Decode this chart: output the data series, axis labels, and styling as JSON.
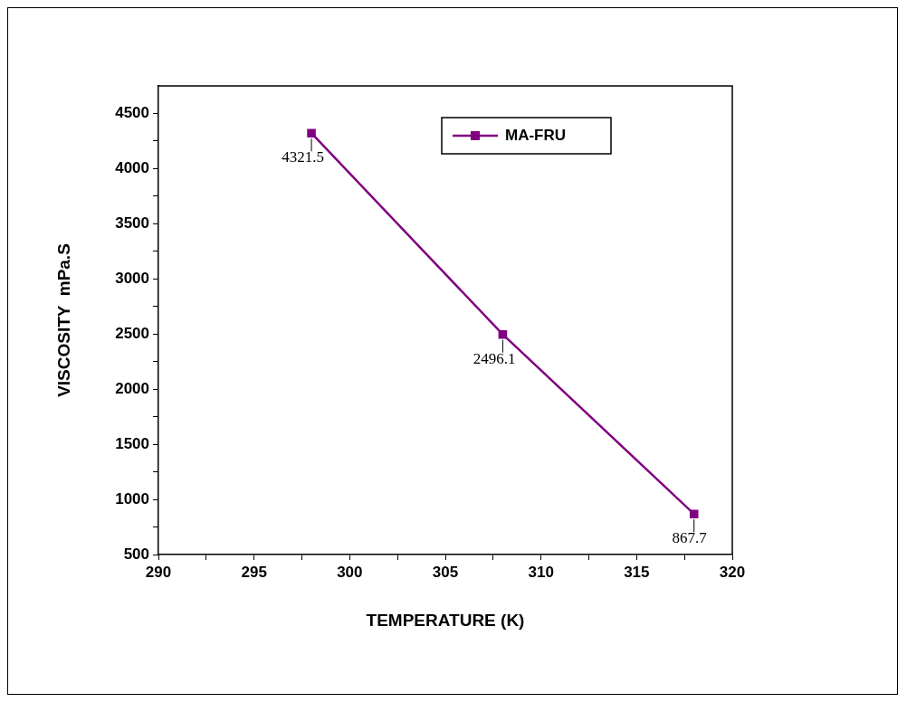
{
  "chart_data": {
    "type": "line",
    "xlabel": "TEMPERATURE (K)",
    "ylabel": "VISCOSITY  mPa.S",
    "x": [
      298,
      308,
      318
    ],
    "series": [
      {
        "name": "MA-FRU",
        "color": "#800080",
        "values": [
          4321.5,
          2496.1,
          867.7
        ]
      }
    ],
    "xlim": [
      290,
      320
    ],
    "xticks": [
      290,
      {
        "value": 292.5,
        "label": null
      },
      295,
      {
        "value": 297.5,
        "label": null
      },
      300,
      {
        "value": 302.5,
        "label": null
      },
      305,
      {
        "value": 307.5,
        "label": null
      },
      310,
      {
        "value": 312.5,
        "label": null
      },
      315,
      {
        "value": 317.5,
        "label": null
      },
      320
    ],
    "ylim": [
      500,
      4750
    ],
    "yticks": [
      500,
      {
        "value": 750,
        "label": null
      },
      1000,
      {
        "value": 1250,
        "label": null
      },
      1500,
      {
        "value": 1750,
        "label": null
      },
      2000,
      {
        "value": 2250,
        "label": null
      },
      2500,
      {
        "value": 2750,
        "label": null
      },
      3000,
      {
        "value": 3250,
        "label": null
      },
      3500,
      {
        "value": 3750,
        "label": null
      },
      4000,
      {
        "value": 4250,
        "label": null
      },
      4500
    ],
    "grid": false,
    "legend": "top right",
    "marker": "square",
    "line_style": "solid",
    "data_labels": true
  }
}
